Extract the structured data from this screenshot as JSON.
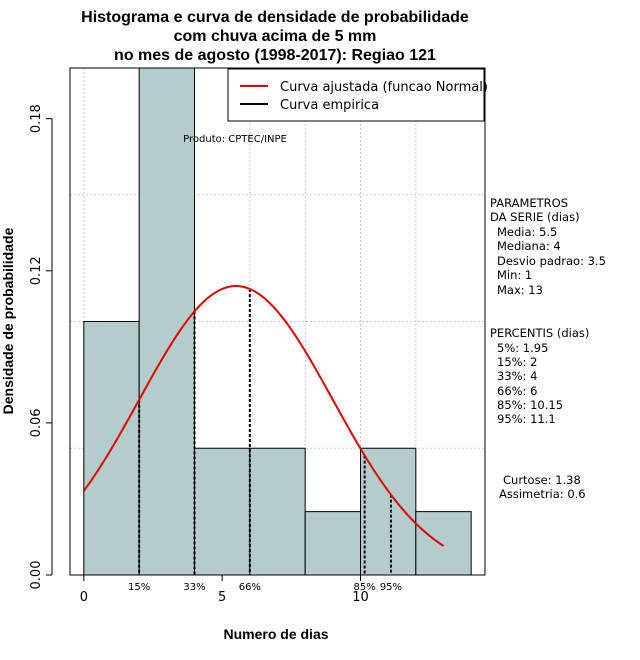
{
  "chart_data": {
    "type": "bar",
    "title_lines": [
      "Histograma e curva de densidade de probabilidade",
      "com chuva acima de 5 mm",
      "no mes de agosto (1998-2017): Regiao 121"
    ],
    "xlabel": "Numero de dias",
    "ylabel": "Densidade de probabilidade",
    "xlim": [
      -0.5,
      14.5
    ],
    "ylim": [
      0,
      0.2
    ],
    "x_ticks": [
      0,
      5,
      10
    ],
    "y_ticks": [
      0.0,
      0.06,
      0.12,
      0.18
    ],
    "y_tick_labels": [
      "0.00",
      "0.06",
      "0.12",
      "0.18"
    ],
    "grid": true,
    "bins": [
      {
        "start": 0,
        "end": 2,
        "density": 0.1
      },
      {
        "start": 2,
        "end": 4,
        "density": 0.2
      },
      {
        "start": 4,
        "end": 6,
        "density": 0.05
      },
      {
        "start": 6,
        "end": 8,
        "density": 0.05
      },
      {
        "start": 8,
        "end": 10,
        "density": 0.025
      },
      {
        "start": 10,
        "end": 12,
        "density": 0.05
      },
      {
        "start": 12,
        "end": 14,
        "density": 0.025
      }
    ],
    "bar_color": "#b4cccc",
    "curve": {
      "name": "Curva ajustada (funcao Normal)",
      "color": "#e00000",
      "mean": 5.5,
      "sd": 3.5,
      "x_range": [
        0,
        13
      ]
    },
    "empirical_name": "Curva empirica",
    "legend_position": "top-right",
    "watermark": "Produto: CPTEC/INPE",
    "percentile_markers": [
      {
        "label": "15%",
        "x": 2
      },
      {
        "label": "33%",
        "x": 4
      },
      {
        "label": "66%",
        "x": 6
      },
      {
        "label": "85%",
        "x": 10.15
      },
      {
        "label": "95%",
        "x": 11.1
      }
    ],
    "parametros": {
      "heading": [
        "PARAMETROS",
        "DA SERIE (dias)"
      ],
      "lines": [
        "Media: 5.5",
        "Mediana: 4",
        "Desvio padrao: 3.5",
        "Min: 1",
        "Max: 13"
      ]
    },
    "percentis": {
      "heading": "PERCENTIS (dias)",
      "lines": [
        "5%: 1.95",
        "15%: 2",
        "33%: 4",
        "66%: 6",
        "85%: 10.15",
        "95%: 11.1"
      ]
    },
    "shape": {
      "lines": [
        "Curtose: 1.38",
        "Assimetria: 0.6"
      ]
    }
  }
}
